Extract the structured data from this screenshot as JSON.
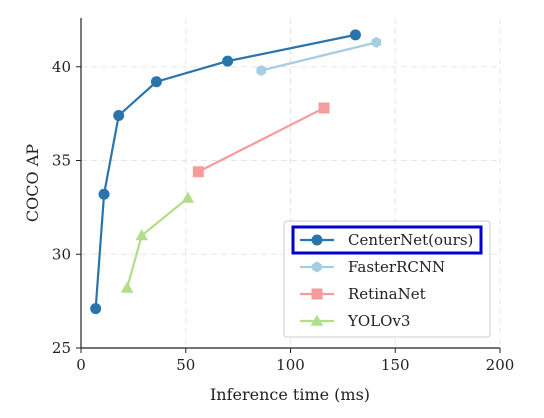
{
  "chart_data": {
    "type": "line",
    "title": "",
    "xlabel": "Inference time (ms)",
    "ylabel": "COCO AP",
    "xlim": [
      0,
      200
    ],
    "ylim": [
      25,
      42.6
    ],
    "xticks": [
      0,
      50,
      100,
      150,
      200
    ],
    "yticks": [
      25,
      30,
      35,
      40
    ],
    "grid": true,
    "legend_position": "lower-right",
    "series": [
      {
        "name": "CenterNet(ours)",
        "color": "#2a74ad",
        "marker": "circle",
        "highlighted": true,
        "x": [
          7,
          11,
          18,
          36,
          70,
          131
        ],
        "y": [
          27.1,
          33.2,
          37.4,
          39.2,
          40.3,
          41.7
        ]
      },
      {
        "name": "FasterRCNN",
        "color": "#a6cee3",
        "marker": "hexagon",
        "x": [
          86,
          141
        ],
        "y": [
          39.8,
          41.3
        ]
      },
      {
        "name": "RetinaNet",
        "color": "#f59d9d",
        "marker": "square",
        "x": [
          56,
          116
        ],
        "y": [
          34.4,
          37.8
        ]
      },
      {
        "name": "YOLOv3",
        "color": "#b2de89",
        "marker": "triangle",
        "x": [
          22,
          29,
          51
        ],
        "y": [
          28.2,
          31.0,
          33.0
        ]
      }
    ],
    "legend_highlight_color": "#0000cc"
  }
}
